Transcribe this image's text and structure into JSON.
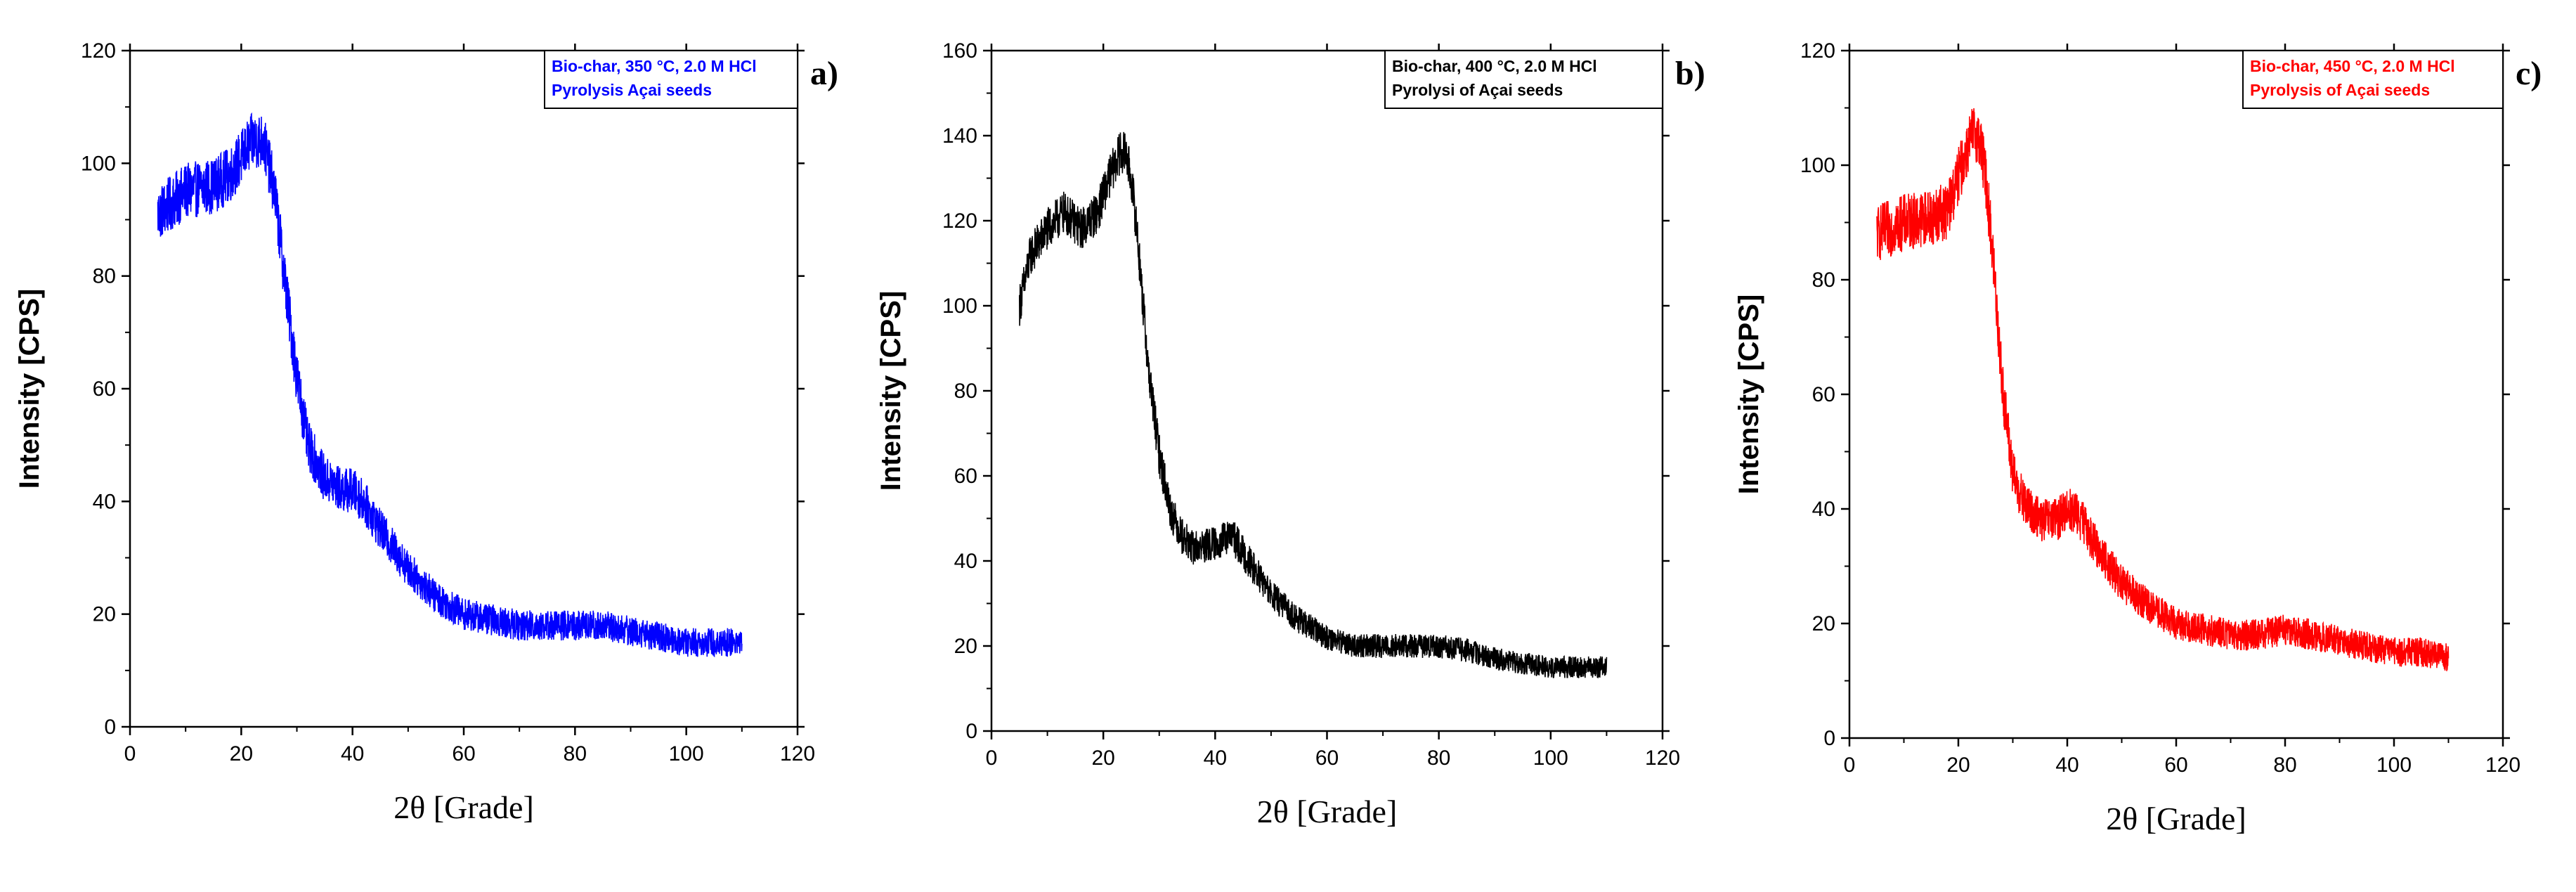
{
  "figure": {
    "panels": [
      "a)",
      "b)",
      "c)"
    ]
  },
  "chart_data": [
    {
      "type": "line",
      "panel": "a)",
      "xlabel": "2θ [Grade]",
      "ylabel": "Intensity [CPS]",
      "xlim": [
        0,
        120
      ],
      "ylim": [
        0,
        120
      ],
      "xticks": [
        "0",
        "20",
        "40",
        "60",
        "80",
        "100",
        "120"
      ],
      "yticks": [
        "0",
        "20",
        "40",
        "60",
        "80",
        "100",
        "120"
      ],
      "legend": [
        "Bio-char, 350 °C, 2.0 M HCl",
        "Pyrolysis Açai seeds"
      ],
      "legend_position": "top-right",
      "color": "#0000ff",
      "series": [
        {
          "x": [
            5,
            10,
            15,
            18,
            20,
            22,
            24,
            26,
            28,
            30,
            32,
            35,
            38,
            40,
            42,
            45,
            50,
            55,
            60,
            65,
            70,
            75,
            80,
            85,
            90,
            95,
            100,
            105,
            110
          ],
          "y": [
            91,
            95,
            96,
            98,
            101,
            104,
            104,
            95,
            78,
            62,
            50,
            44,
            42,
            42,
            40,
            35,
            28,
            23,
            20,
            19,
            18,
            18,
            18,
            18,
            17,
            16,
            15,
            15,
            15
          ],
          "noise": 5
        }
      ]
    },
    {
      "type": "line",
      "panel": "b)",
      "xlabel": "2θ [Grade]",
      "ylabel": "Intensity [CPS]",
      "xlim": [
        0,
        120
      ],
      "ylim": [
        0,
        160
      ],
      "xticks": [
        "0",
        "20",
        "40",
        "60",
        "80",
        "100",
        "120"
      ],
      "yticks": [
        "0",
        "20",
        "40",
        "60",
        "80",
        "100",
        "120",
        "140",
        "160"
      ],
      "legend": [
        "Bio-char, 400 °C, 2.0 M HCl",
        "Pyrolysi of Açai seeds"
      ],
      "legend_position": "top-right",
      "color": "#000000",
      "series": [
        {
          "x": [
            5,
            7,
            10,
            13,
            16,
            19,
            21,
            23,
            24,
            25,
            26,
            27,
            28,
            30,
            32,
            34,
            36,
            40,
            43,
            45,
            50,
            55,
            60,
            65,
            70,
            75,
            80,
            85,
            90,
            95,
            100,
            105,
            110
          ],
          "y": [
            100,
            112,
            118,
            122,
            118,
            122,
            130,
            136,
            136,
            130,
            118,
            102,
            86,
            65,
            52,
            46,
            43,
            44,
            46,
            42,
            32,
            26,
            22,
            20,
            20,
            20,
            20,
            19,
            17,
            16,
            15,
            15,
            15
          ],
          "noise": 5
        }
      ]
    },
    {
      "type": "line",
      "panel": "c)",
      "xlabel": "2θ [Grade]",
      "ylabel": "Intensity [CPS]",
      "xlim": [
        0,
        120
      ],
      "ylim": [
        0,
        120
      ],
      "xticks": [
        "0",
        "20",
        "40",
        "60",
        "80",
        "100",
        "120"
      ],
      "yticks": [
        "0",
        "20",
        "40",
        "60",
        "80",
        "100",
        "120"
      ],
      "legend": [
        "Bio-char, 450 °C, 2.0 M HCl",
        "Pyrolysis of Açai seeds"
      ],
      "legend_position": "top-right",
      "color": "#ff0000",
      "series": [
        {
          "x": [
            5,
            10,
            15,
            18,
            20,
            22,
            23,
            24,
            25,
            26,
            27,
            28,
            30,
            32,
            35,
            38,
            40,
            42,
            45,
            50,
            55,
            60,
            65,
            70,
            75,
            80,
            85,
            90,
            95,
            100,
            105,
            110
          ],
          "y": [
            88,
            90,
            91,
            92,
            98,
            104,
            106,
            104,
            98,
            88,
            76,
            62,
            46,
            41,
            38,
            38,
            40,
            39,
            34,
            27,
            23,
            20,
            19,
            18,
            18,
            19,
            18,
            17,
            16,
            15,
            15,
            14
          ],
          "noise": 5
        }
      ]
    }
  ]
}
